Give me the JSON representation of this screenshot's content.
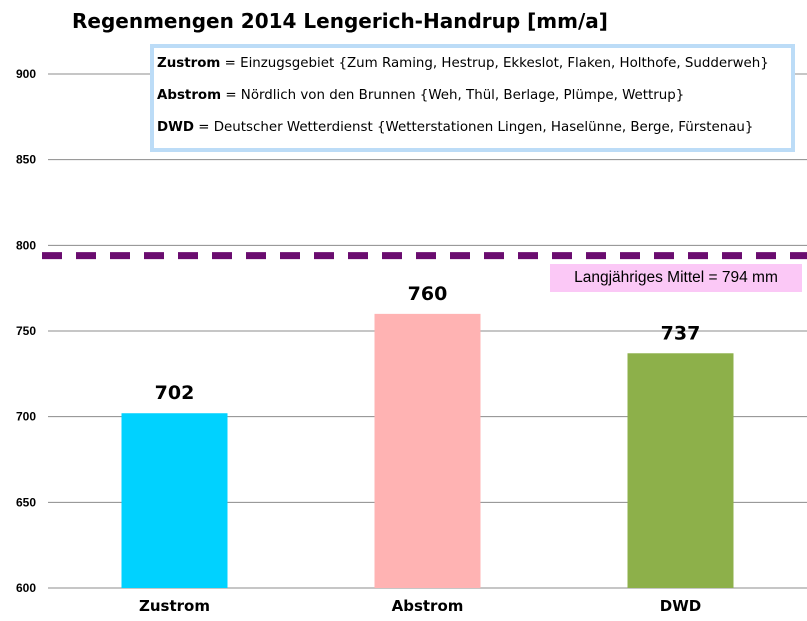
{
  "chart_data": {
    "type": "bar",
    "title": "Regenmengen 2014 Lengerich-Handrup [mm/a]",
    "categories": [
      "Zustrom",
      "Abstrom",
      "DWD"
    ],
    "values": [
      702,
      760,
      737
    ],
    "data_labels": [
      "702",
      "760",
      "737"
    ],
    "colors": [
      "#00d2ff",
      "#ffb3b3",
      "#8db04a"
    ],
    "ylim": [
      600,
      900
    ],
    "yticks": [
      600,
      650,
      700,
      750,
      800,
      850,
      900
    ],
    "ytick_labels": [
      "600",
      "650",
      "700",
      "750",
      "800",
      "850",
      "900"
    ],
    "grid": true,
    "reference_line": {
      "value": 794,
      "color": "#6a0c6f",
      "style": "dashed",
      "label": "Langjähriges Mittel = 794 mm"
    },
    "legend_placement": "top-right",
    "legend": [
      {
        "term": "Zustrom",
        "text": " = Einzugsgebiet {Zum Raming, Hestrup, Ekkeslot, Flaken, Holthofe, Sudderweh}"
      },
      {
        "term": "Abstrom",
        "text": " = Nördlich von den Brunnen {Weh, Thül, Berlage, Plümpe, Wettrup}"
      },
      {
        "term": "DWD",
        "text": " = Deutscher Wetterdienst {Wetterstationen Lingen, Haselünne, Berge, Fürstenau}"
      }
    ]
  }
}
